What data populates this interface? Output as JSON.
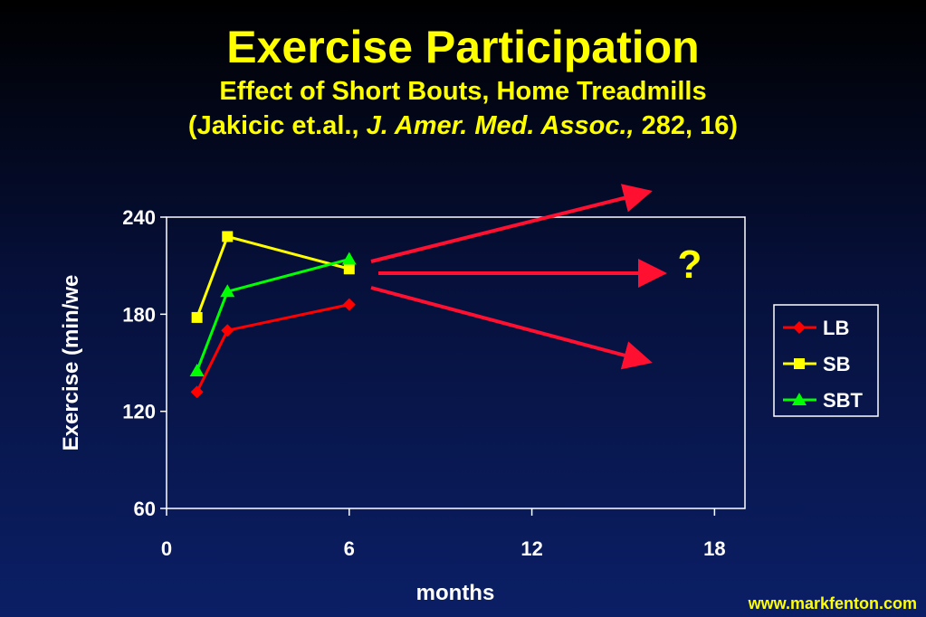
{
  "slide": {
    "title": "Exercise Participation",
    "subtitle": "Effect of Short Bouts, Home Treadmills",
    "citation_prefix": "(Jakicic et.al., ",
    "citation_journal": "J. Amer. Med. Assoc.,",
    "citation_suffix": " 282, 16)",
    "footer": "www.markfenton.com"
  },
  "chart_data": {
    "type": "line",
    "xlabel": "months",
    "ylabel": "Exercise (min/we",
    "xlim": [
      0,
      19
    ],
    "ylim": [
      60,
      240
    ],
    "xticks": [
      0,
      6,
      12,
      18
    ],
    "yticks": [
      60,
      120,
      180,
      240
    ],
    "legend_position": "right",
    "series": [
      {
        "name": "LB",
        "color": "#ff0000",
        "marker": "diamond",
        "x": [
          1,
          2,
          6
        ],
        "y": [
          132,
          170,
          186
        ]
      },
      {
        "name": "SB",
        "color": "#ffff00",
        "marker": "square",
        "x": [
          1,
          2,
          6
        ],
        "y": [
          178,
          228,
          208
        ]
      },
      {
        "name": "SBT",
        "color": "#00ff00",
        "marker": "triangle",
        "x": [
          1,
          2,
          6
        ],
        "y": [
          145,
          194,
          214
        ]
      }
    ],
    "projection_arrows": {
      "color": "#ff1030",
      "label": "?",
      "label_color": "#ffff00"
    }
  }
}
